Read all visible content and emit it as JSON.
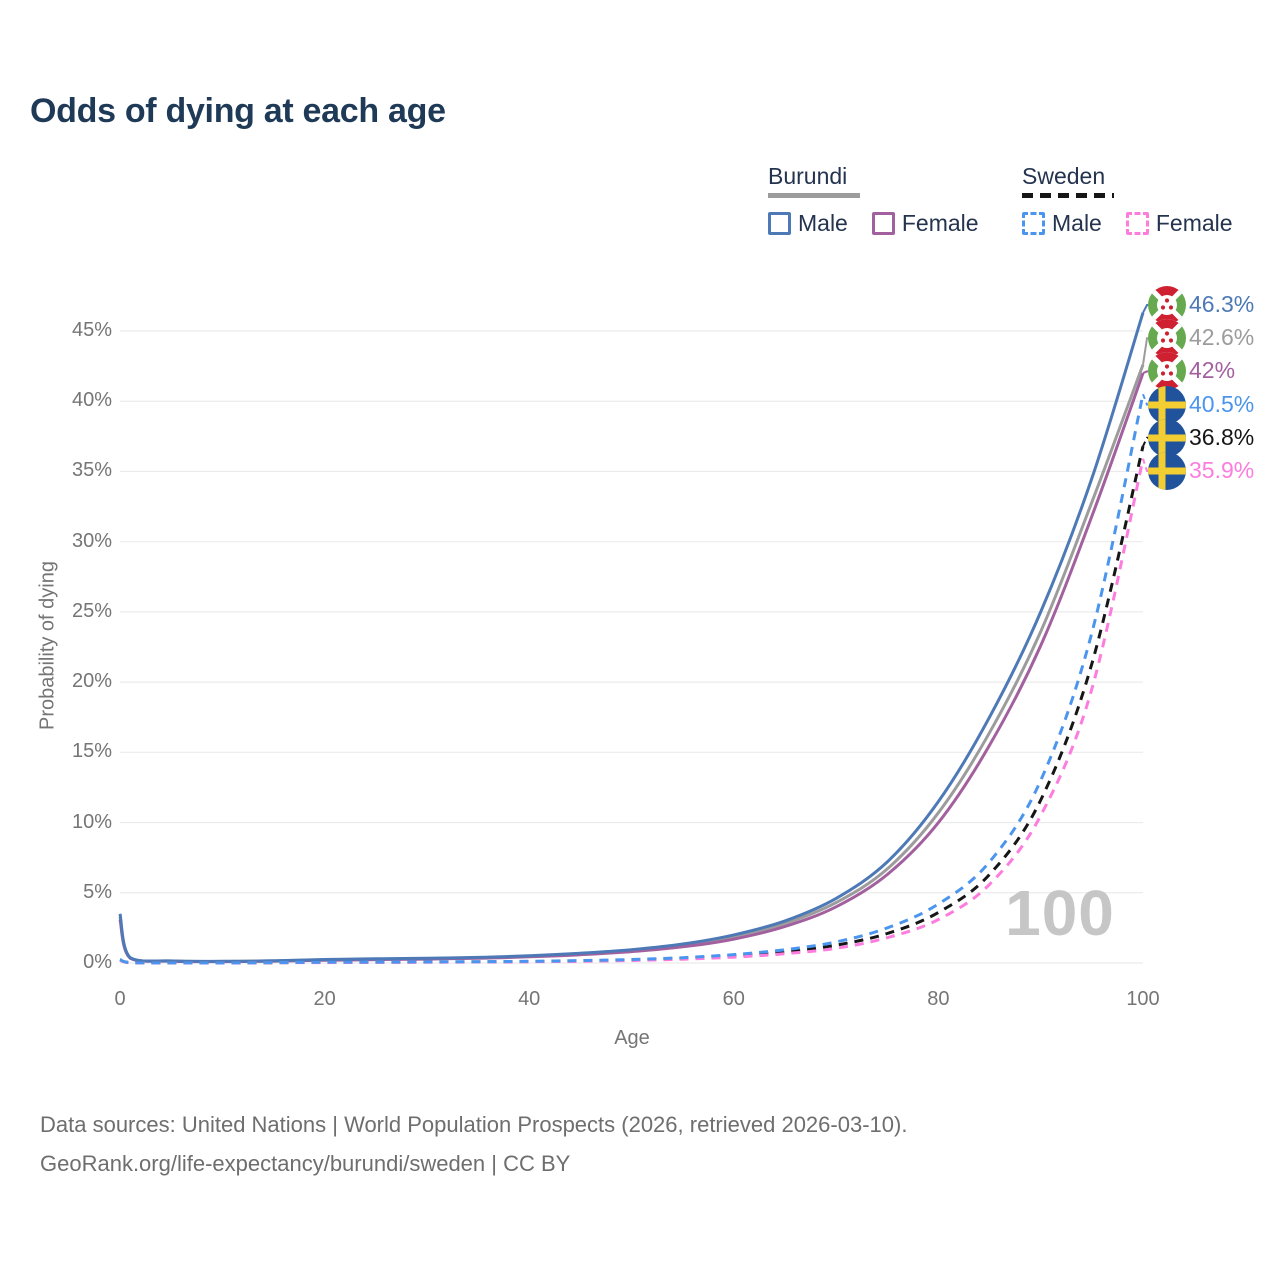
{
  "page": {
    "title": "Odds of dying at each age"
  },
  "legend": {
    "groups": [
      {
        "label": "Burundi",
        "line_style": "solid",
        "underline_color": "#9c9c9c",
        "items": [
          {
            "label": "Male",
            "color": "#4d79b6"
          },
          {
            "label": "Female",
            "color": "#a2609f"
          }
        ]
      },
      {
        "label": "Sweden",
        "line_style": "dashed",
        "underline_color": "#161616",
        "items": [
          {
            "label": "Male",
            "color": "#4b95ee"
          },
          {
            "label": "Female",
            "color": "#fc7ddd"
          }
        ]
      }
    ]
  },
  "chart_data": {
    "type": "line",
    "title": "Odds of dying at each age",
    "xlabel": "Age",
    "ylabel": "Probability of dying",
    "xlim": [
      0,
      100
    ],
    "ylim": [
      0,
      47
    ],
    "grid": "horizontal",
    "legend_position": "top-right",
    "watermark_age": "100",
    "x": [
      0,
      1,
      5,
      10,
      15,
      20,
      25,
      30,
      35,
      40,
      45,
      50,
      55,
      60,
      65,
      70,
      75,
      80,
      85,
      90,
      95,
      100
    ],
    "xticks": [
      {
        "v": 0,
        "label": "0"
      },
      {
        "v": 20,
        "label": "20"
      },
      {
        "v": 40,
        "label": "40"
      },
      {
        "v": 60,
        "label": "60"
      },
      {
        "v": 80,
        "label": "80"
      },
      {
        "v": 100,
        "label": "100"
      }
    ],
    "yticks": [
      {
        "v": 0,
        "label": "0%"
      },
      {
        "v": 5,
        "label": "5%"
      },
      {
        "v": 10,
        "label": "10%"
      },
      {
        "v": 15,
        "label": "15%"
      },
      {
        "v": 20,
        "label": "20%"
      },
      {
        "v": 25,
        "label": "25%"
      },
      {
        "v": 30,
        "label": "30%"
      },
      {
        "v": 35,
        "label": "35%"
      },
      {
        "v": 40,
        "label": "40%"
      },
      {
        "v": 45,
        "label": "45%"
      }
    ],
    "series": [
      {
        "name": "Burundi Male",
        "color": "#4d79b6",
        "dash": false,
        "flag": "burundi",
        "end_label": "46.3%",
        "values": [
          3.5,
          0.38,
          0.15,
          0.12,
          0.16,
          0.25,
          0.3,
          0.34,
          0.4,
          0.52,
          0.7,
          0.95,
          1.35,
          2.0,
          3.0,
          4.6,
          7.2,
          11.5,
          17.5,
          25.0,
          34.5,
          46.3
        ]
      },
      {
        "name": "Burundi (both sexes)",
        "color": "#9c9c9c",
        "dash": false,
        "flag": "burundi",
        "end_label": "42.6%",
        "values": [
          3.3,
          0.36,
          0.14,
          0.11,
          0.15,
          0.22,
          0.27,
          0.31,
          0.37,
          0.48,
          0.64,
          0.88,
          1.25,
          1.85,
          2.8,
          4.3,
          6.7,
          10.7,
          16.4,
          23.6,
          32.8,
          42.6
        ]
      },
      {
        "name": "Burundi Female",
        "color": "#a2609f",
        "dash": false,
        "flag": "burundi",
        "end_label": "42%",
        "values": [
          3.1,
          0.34,
          0.13,
          0.1,
          0.13,
          0.19,
          0.24,
          0.28,
          0.34,
          0.44,
          0.59,
          0.81,
          1.15,
          1.7,
          2.6,
          4.0,
          6.3,
          10.0,
          15.5,
          22.6,
          31.8,
          42.0
        ]
      },
      {
        "name": "Sweden Male",
        "color": "#4b95ee",
        "dash": true,
        "flag": "sweden",
        "end_label": "40.5%",
        "values": [
          0.25,
          0.03,
          0.01,
          0.01,
          0.03,
          0.06,
          0.07,
          0.08,
          0.09,
          0.12,
          0.17,
          0.25,
          0.38,
          0.6,
          0.95,
          1.5,
          2.5,
          4.2,
          7.2,
          13.0,
          23.5,
          40.5
        ]
      },
      {
        "name": "Sweden (both sexes)",
        "color": "#161616",
        "dash": true,
        "flag": "sweden",
        "end_label": "36.8%",
        "values": [
          0.22,
          0.03,
          0.01,
          0.01,
          0.02,
          0.05,
          0.06,
          0.07,
          0.08,
          0.1,
          0.14,
          0.21,
          0.32,
          0.5,
          0.8,
          1.27,
          2.1,
          3.6,
          6.3,
          11.6,
          21.3,
          36.8
        ]
      },
      {
        "name": "Sweden Female",
        "color": "#fc7ddd",
        "dash": true,
        "flag": "sweden",
        "end_label": "35.9%",
        "values": [
          0.2,
          0.02,
          0.01,
          0.01,
          0.02,
          0.03,
          0.04,
          0.05,
          0.07,
          0.09,
          0.12,
          0.18,
          0.27,
          0.42,
          0.66,
          1.05,
          1.8,
          3.1,
          5.6,
          10.5,
          19.5,
          35.9
        ]
      }
    ]
  },
  "footer": {
    "line1": "Data sources: United Nations | World Population Prospects (2026, retrieved 2026-03-10).",
    "line2": "GeoRank.org/life-expectancy/burundi/sweden | CC BY"
  }
}
